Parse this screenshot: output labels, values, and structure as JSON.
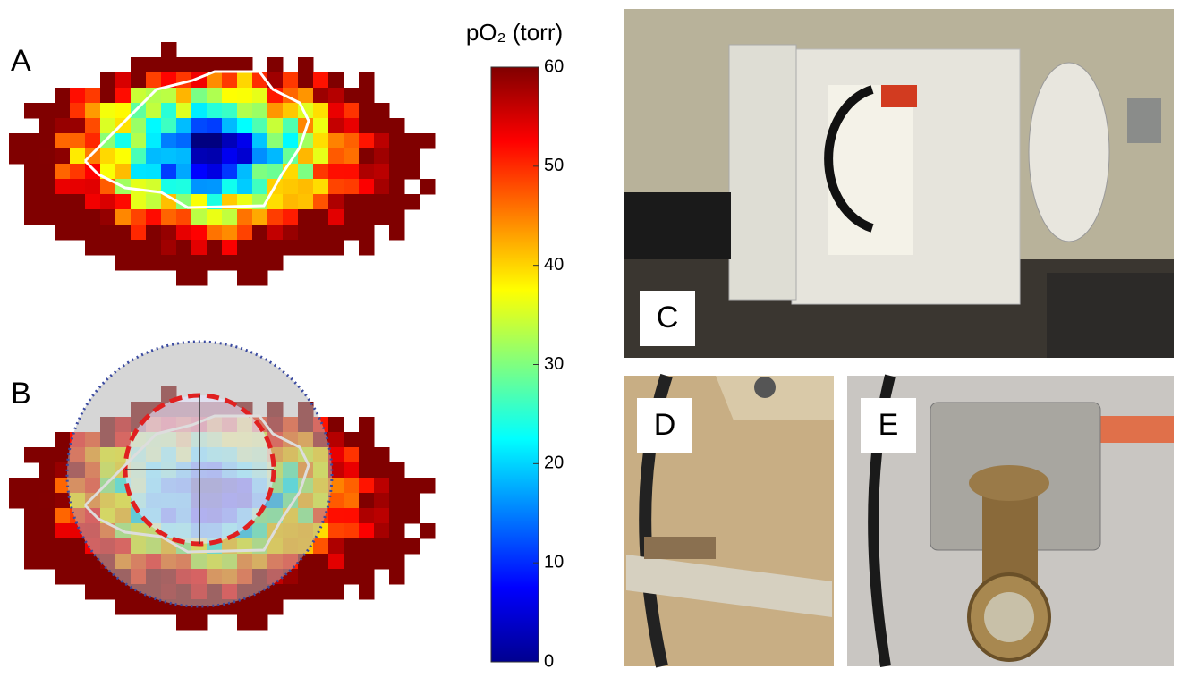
{
  "panels": {
    "A": "A",
    "B": "B",
    "C": "C",
    "D": "D",
    "E": "E"
  },
  "colorbar": {
    "title": "pO₂ (torr)",
    "lim": [
      0,
      60
    ],
    "ticks": [
      0,
      10,
      20,
      30,
      40,
      50,
      60
    ]
  }
}
